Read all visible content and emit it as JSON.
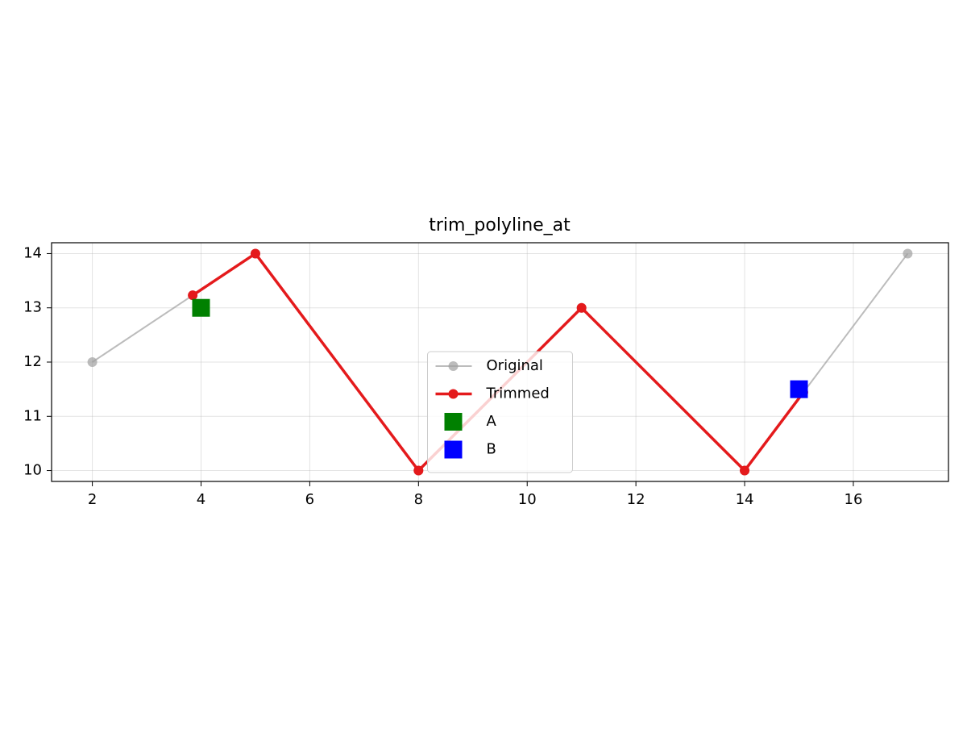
{
  "chart_data": {
    "type": "line",
    "title": "trim_polyline_at",
    "series": [
      {
        "name": "Original",
        "color": "#a0a0a0",
        "marker": "o",
        "line": true,
        "linewidth": 2,
        "opacity": 0.7,
        "x": [
          2,
          5,
          8,
          11,
          14,
          17
        ],
        "values": [
          12,
          14,
          10,
          13,
          10,
          14
        ]
      },
      {
        "name": "Trimmed",
        "color": "#e41a1c",
        "marker": "o",
        "line": true,
        "linewidth": 3.5,
        "opacity": 1,
        "x": [
          3.846,
          5,
          8,
          11,
          14,
          15.08
        ],
        "values": [
          13.231,
          14,
          10,
          13,
          10,
          11.44
        ]
      },
      {
        "name": "A",
        "color": "#008000",
        "marker": "s",
        "line": false,
        "opacity": 1,
        "x": [
          4
        ],
        "values": [
          13
        ]
      },
      {
        "name": "B",
        "color": "#0000ff",
        "marker": "s",
        "line": false,
        "opacity": 1,
        "x": [
          15
        ],
        "values": [
          11.5
        ]
      }
    ],
    "xlim": [
      1.25,
      17.75
    ],
    "ylim": [
      9.8,
      14.2
    ],
    "xticks": [
      2,
      4,
      6,
      8,
      10,
      12,
      14,
      16
    ],
    "yticks": [
      10,
      11,
      12,
      13,
      14
    ],
    "grid": true,
    "legend": "lower center"
  }
}
